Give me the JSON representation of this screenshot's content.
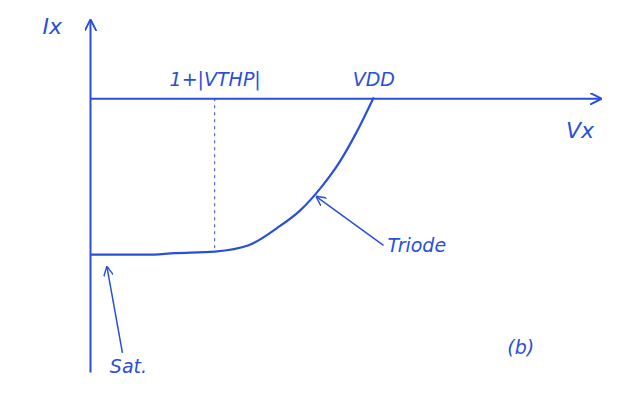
{
  "chart_data": {
    "type": "line",
    "x_label": "Vx",
    "y_label": "Ix",
    "xlim": [
      0,
      9
    ],
    "ylim": [
      -1.75,
      0.5
    ],
    "xticks": [
      {
        "value": 2.2,
        "label": "1+|VTHP|"
      },
      {
        "value": 5,
        "label": "VDD"
      }
    ],
    "yticks": [],
    "tick_labels": "x",
    "grid": false,
    "series": [
      {
        "name": "Ix",
        "color": "#2a4fd8",
        "x": [
          0,
          0.5,
          1,
          1.5,
          2.2,
          2.8,
          3.3,
          3.7,
          4.1,
          4.4,
          4.7,
          5
        ],
        "values": [
          -1,
          -1,
          -1,
          -0.99,
          -0.98,
          -0.94,
          -0.83,
          -0.72,
          -0.56,
          -0.41,
          -0.22,
          0
        ]
      }
    ],
    "annotations": [
      {
        "text": "Triode",
        "x": 5.25,
        "y": -0.95,
        "arrow_x": 4.0,
        "arrow_y": -0.63
      },
      {
        "text": "Sat.",
        "x": 0.35,
        "y": -1.72,
        "arrow_x": 0.3,
        "arrow_y": -1.08
      },
      {
        "text": "(b)",
        "x": 7.6,
        "y": -1.6,
        "arrow_x": null,
        "arrow_y": null
      }
    ]
  }
}
